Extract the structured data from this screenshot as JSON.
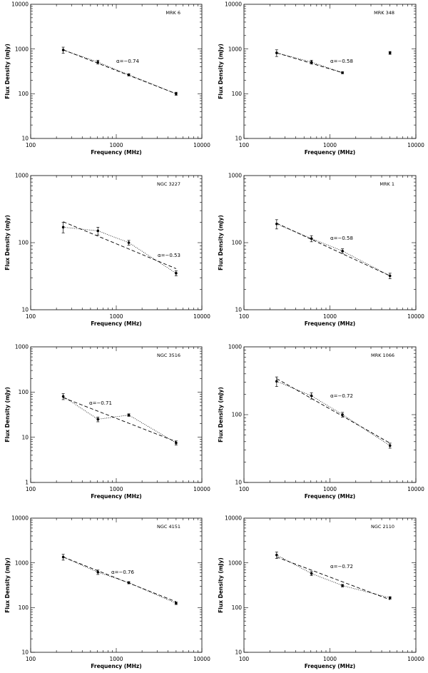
{
  "figure": {
    "description_free": true
  },
  "chart_data": [
    {
      "type": "line",
      "scale": "log-log",
      "source": "MRK 6",
      "alpha_label": "α=−0.74",
      "xlabel": "Frequency (MHz)",
      "ylabel": "Flux Density (mJy)",
      "xlim": [
        100,
        10000
      ],
      "ylim": [
        10,
        10000
      ],
      "xticks": [
        "100",
        "1000",
        "10000"
      ],
      "yticks": [
        "10",
        "100",
        "1000",
        "10000"
      ],
      "points": {
        "x": [
          240,
          610,
          1400,
          5000
        ],
        "y": [
          950,
          510,
          265,
          100
        ],
        "err": [
          150,
          50,
          15,
          8
        ]
      },
      "fit": {
        "x": [
          240,
          5000
        ],
        "y": [
          960,
          100
        ]
      },
      "dotted": {
        "x": [
          240,
          610,
          1400,
          5000
        ],
        "y": [
          950,
          510,
          265,
          100
        ]
      },
      "extra_points": null
    },
    {
      "type": "line",
      "scale": "log-log",
      "source": "MRK 348",
      "alpha_label": "α=−0.58",
      "xlabel": "Frequency (MHz)",
      "ylabel": "Flux Density (mJy)",
      "xlim": [
        100,
        10000
      ],
      "ylim": [
        10,
        10000
      ],
      "xticks": [
        "100",
        "1000",
        "10000"
      ],
      "yticks": [
        "10",
        "100",
        "1000",
        "10000"
      ],
      "points": {
        "x": [
          240,
          610,
          1400
        ],
        "y": [
          820,
          510,
          295
        ],
        "err": [
          140,
          50,
          15
        ]
      },
      "fit": {
        "x": [
          240,
          1400
        ],
        "y": [
          820,
          295
        ]
      },
      "dotted": {
        "x": [
          240,
          610,
          1400
        ],
        "y": [
          820,
          510,
          295
        ]
      },
      "extra_points": {
        "x": [
          5000
        ],
        "y": [
          820
        ],
        "err": [
          60
        ]
      }
    },
    {
      "type": "line",
      "scale": "log-log",
      "source": "NGC 3227",
      "alpha_label": "α=−0.53",
      "xlabel": "Frequency (MHz)",
      "ylabel": "Flux Density (mJy)",
      "xlim": [
        100,
        10000
      ],
      "ylim": [
        10,
        1000
      ],
      "xticks": [
        "100",
        "1000",
        "10000"
      ],
      "yticks": [
        "10",
        "100",
        "1000"
      ],
      "points": {
        "x": [
          240,
          610,
          1400,
          5000
        ],
        "y": [
          170,
          150,
          100,
          35
        ],
        "err": [
          30,
          20,
          8,
          3
        ]
      },
      "fit": {
        "x": [
          240,
          5000
        ],
        "y": [
          205,
          41
        ]
      },
      "dotted": {
        "x": [
          240,
          610,
          1400,
          5000
        ],
        "y": [
          170,
          150,
          100,
          35
        ]
      },
      "extra_points": null
    },
    {
      "type": "line",
      "scale": "log-log",
      "source": "MRK 1",
      "alpha_label": "α=−0.58",
      "xlabel": "Frequency (MHz)",
      "ylabel": "Flux Density (mJy)",
      "xlim": [
        100,
        10000
      ],
      "ylim": [
        10,
        1000
      ],
      "xticks": [
        "100",
        "1000",
        "10000"
      ],
      "yticks": [
        "10",
        "100",
        "1000"
      ],
      "points": {
        "x": [
          240,
          610,
          1400,
          5000
        ],
        "y": [
          190,
          115,
          75,
          32
        ],
        "err": [
          30,
          12,
          6,
          3
        ]
      },
      "fit": {
        "x": [
          240,
          5000
        ],
        "y": [
          195,
          32
        ]
      },
      "dotted": {
        "x": [
          240,
          610,
          1400,
          5000
        ],
        "y": [
          190,
          115,
          75,
          32
        ]
      },
      "extra_points": null
    },
    {
      "type": "line",
      "scale": "log-log",
      "source": "NGC 3516",
      "alpha_label": "α=−0.71",
      "xlabel": "Frequency (MHz)",
      "ylabel": "Flux Density (mJy)",
      "xlim": [
        100,
        10000
      ],
      "ylim": [
        1,
        1000
      ],
      "xticks": [
        "100",
        "1000",
        "10000"
      ],
      "yticks": [
        "1",
        "10",
        "100",
        "1000"
      ],
      "points": {
        "x": [
          240,
          610,
          1400,
          5000
        ],
        "y": [
          80,
          25,
          31,
          7.5
        ],
        "err": [
          12,
          3,
          2,
          0.8
        ]
      },
      "fit": {
        "x": [
          240,
          5000
        ],
        "y": [
          75,
          8
        ]
      },
      "dotted": {
        "x": [
          240,
          610,
          1400,
          5000
        ],
        "y": [
          80,
          25,
          31,
          7.5
        ]
      },
      "extra_points": null
    },
    {
      "type": "line",
      "scale": "log-log",
      "source": "MRK 1066",
      "alpha_label": "α=−0.72",
      "xlabel": "Frequency (MHz)",
      "ylabel": "Flux Density (mJy)",
      "xlim": [
        100,
        10000
      ],
      "ylim": [
        10,
        1000
      ],
      "xticks": [
        "100",
        "1000",
        "10000"
      ],
      "yticks": [
        "10",
        "100",
        "1000"
      ],
      "points": {
        "x": [
          240,
          610,
          1400,
          5000
        ],
        "y": [
          310,
          190,
          100,
          35
        ],
        "err": [
          50,
          20,
          8,
          3
        ]
      },
      "fit": {
        "x": [
          240,
          5000
        ],
        "y": [
          340,
          38
        ]
      },
      "dotted": {
        "x": [
          240,
          610,
          1400,
          5000
        ],
        "y": [
          310,
          190,
          100,
          35
        ]
      },
      "extra_points": null
    },
    {
      "type": "line",
      "scale": "log-log",
      "source": "NGC 4151",
      "alpha_label": "α=−0.76",
      "xlabel": "Frequency (MHz)",
      "ylabel": "Flux Density (mJy)",
      "xlim": [
        100,
        10000
      ],
      "ylim": [
        10,
        10000
      ],
      "xticks": [
        "100",
        "1000",
        "10000"
      ],
      "yticks": [
        "10",
        "100",
        "1000",
        "10000"
      ],
      "points": {
        "x": [
          240,
          610,
          1400,
          5000
        ],
        "y": [
          1350,
          620,
          360,
          125
        ],
        "err": [
          200,
          70,
          20,
          8
        ]
      },
      "fit": {
        "x": [
          240,
          5000
        ],
        "y": [
          1350,
          135
        ]
      },
      "dotted": {
        "x": [
          240,
          610,
          1400,
          5000
        ],
        "y": [
          1350,
          620,
          360,
          125
        ]
      },
      "extra_points": null
    },
    {
      "type": "line",
      "scale": "log-log",
      "source": "NGC 2110",
      "alpha_label": "α=−0.72",
      "xlabel": "Frequency (MHz)",
      "ylabel": "Flux Density (mJy)",
      "xlim": [
        100,
        10000
      ],
      "ylim": [
        10,
        10000
      ],
      "xticks": [
        "100",
        "1000",
        "10000"
      ],
      "yticks": [
        "10",
        "100",
        "1000",
        "10000"
      ],
      "points": {
        "x": [
          240,
          610,
          1400,
          5000
        ],
        "y": [
          1500,
          580,
          310,
          165
        ],
        "err": [
          250,
          60,
          20,
          10
        ]
      },
      "fit": {
        "x": [
          240,
          5000
        ],
        "y": [
          1350,
          150
        ]
      },
      "dotted": {
        "x": [
          240,
          610,
          1400,
          5000
        ],
        "y": [
          1500,
          580,
          310,
          165
        ]
      },
      "extra_points": null
    }
  ]
}
